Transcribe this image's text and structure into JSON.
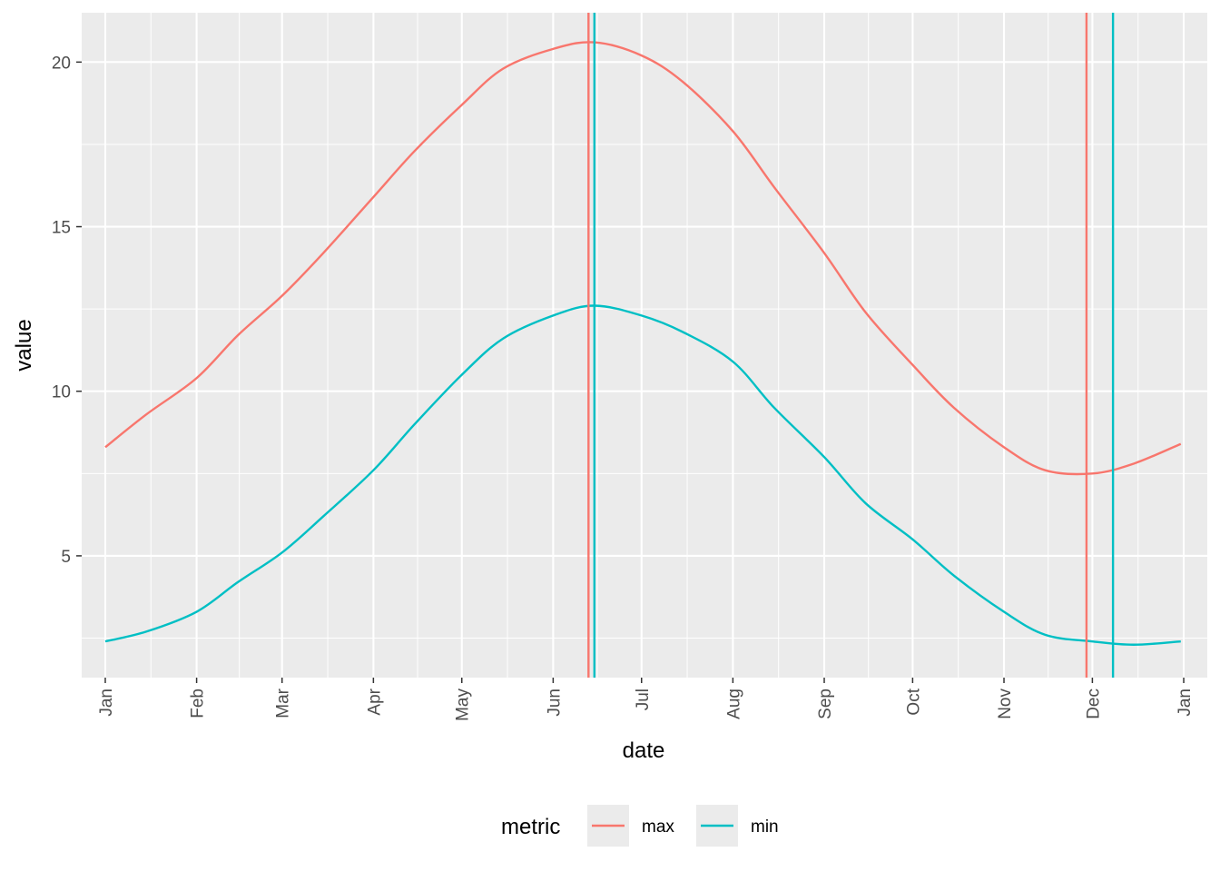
{
  "chart_data": {
    "type": "line",
    "xlabel": "date",
    "ylabel": "value",
    "x_ticks": [
      "Jan",
      "Feb",
      "Mar",
      "Apr",
      "May",
      "Jun",
      "Jul",
      "Aug",
      "Sep",
      "Oct",
      "Nov",
      "Dec",
      "Jan"
    ],
    "y_ticks": [
      "5",
      "10",
      "15",
      "20"
    ],
    "ylim": [
      1.3,
      21.5
    ],
    "xlim": [
      "2023-12-24",
      "2025-01-09"
    ],
    "grid": true,
    "legend": {
      "title": "metric",
      "position": "bottom"
    },
    "series": [
      {
        "name": "max",
        "color": "#F8766D",
        "x": [
          "2024-01-01",
          "2024-01-15",
          "2024-02-01",
          "2024-02-15",
          "2024-03-01",
          "2024-03-15",
          "2024-04-01",
          "2024-04-15",
          "2024-05-01",
          "2024-05-15",
          "2024-06-01",
          "2024-06-15",
          "2024-07-01",
          "2024-07-15",
          "2024-08-01",
          "2024-08-15",
          "2024-09-01",
          "2024-09-15",
          "2024-10-01",
          "2024-10-15",
          "2024-11-01",
          "2024-11-15",
          "2024-12-01",
          "2024-12-15",
          "2024-12-31"
        ],
        "y": [
          8.3,
          9.3,
          10.4,
          11.7,
          12.9,
          14.2,
          15.9,
          17.3,
          18.7,
          19.8,
          20.4,
          20.6,
          20.2,
          19.4,
          17.9,
          16.2,
          14.2,
          12.4,
          10.8,
          9.5,
          8.3,
          7.6,
          7.5,
          7.8,
          8.4
        ]
      },
      {
        "name": "min",
        "color": "#00BFC4",
        "x": [
          "2024-01-01",
          "2024-01-15",
          "2024-02-01",
          "2024-02-15",
          "2024-03-01",
          "2024-03-15",
          "2024-04-01",
          "2024-04-15",
          "2024-05-01",
          "2024-05-15",
          "2024-06-01",
          "2024-06-15",
          "2024-07-01",
          "2024-07-15",
          "2024-08-01",
          "2024-08-15",
          "2024-09-01",
          "2024-09-15",
          "2024-10-01",
          "2024-10-15",
          "2024-11-01",
          "2024-11-15",
          "2024-12-01",
          "2024-12-15",
          "2024-12-31"
        ],
        "y": [
          2.4,
          2.7,
          3.3,
          4.2,
          5.1,
          6.2,
          7.6,
          9.0,
          10.5,
          11.6,
          12.3,
          12.6,
          12.3,
          11.8,
          10.9,
          9.5,
          8.0,
          6.6,
          5.5,
          4.4,
          3.3,
          2.6,
          2.4,
          2.3,
          2.4
        ]
      }
    ],
    "vlines": [
      {
        "series": "max",
        "x": "2024-06-13",
        "color": "#F8766D"
      },
      {
        "series": "min",
        "x": "2024-06-15",
        "color": "#00BFC4"
      },
      {
        "series": "max",
        "x": "2024-11-29",
        "color": "#F8766D"
      },
      {
        "series": "min",
        "x": "2024-12-08",
        "color": "#00BFC4"
      }
    ],
    "colors": {
      "panel": "#EBEBEB",
      "grid": "#FFFFFF",
      "max": "#F8766D",
      "min": "#00BFC4"
    }
  }
}
